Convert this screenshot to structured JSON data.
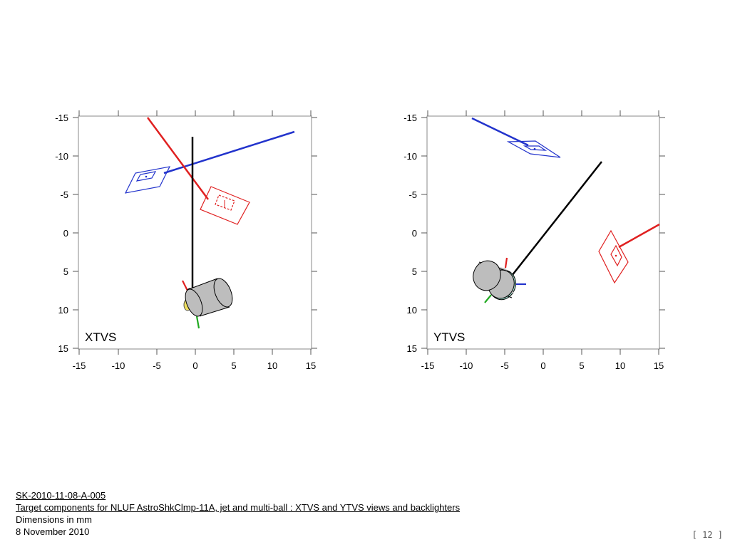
{
  "plots": [
    {
      "view": "XTVS",
      "x_ticks": [
        "-15",
        "-10",
        "-5",
        "0",
        "5",
        "10",
        "15"
      ],
      "y_ticks": [
        "-15",
        "-10",
        "-5",
        "0",
        "5",
        "10",
        "15"
      ]
    },
    {
      "view": "YTVS",
      "x_ticks": [
        "-15",
        "-10",
        "-5",
        "0",
        "5",
        "10",
        "15"
      ],
      "y_ticks": [
        "-15",
        "-10",
        "-5",
        "0",
        "5",
        "10",
        "15"
      ]
    }
  ],
  "caption": {
    "drawing_id": "SK-2010-11-08-A-005",
    "title": "Target components for NLUF AstroShkClmp-11A, jet and multi-ball : XTVS and YTVS views and backlighters",
    "units": "Dimensions in mm",
    "date": "8 November 2010"
  },
  "page_number": "[ 12 ]",
  "colors": {
    "red": "#e02020",
    "blue": "#2233cc",
    "black": "#000000",
    "green": "#22aa22",
    "cylinder": "#bdbdbd",
    "yellow": "#f0e060"
  }
}
